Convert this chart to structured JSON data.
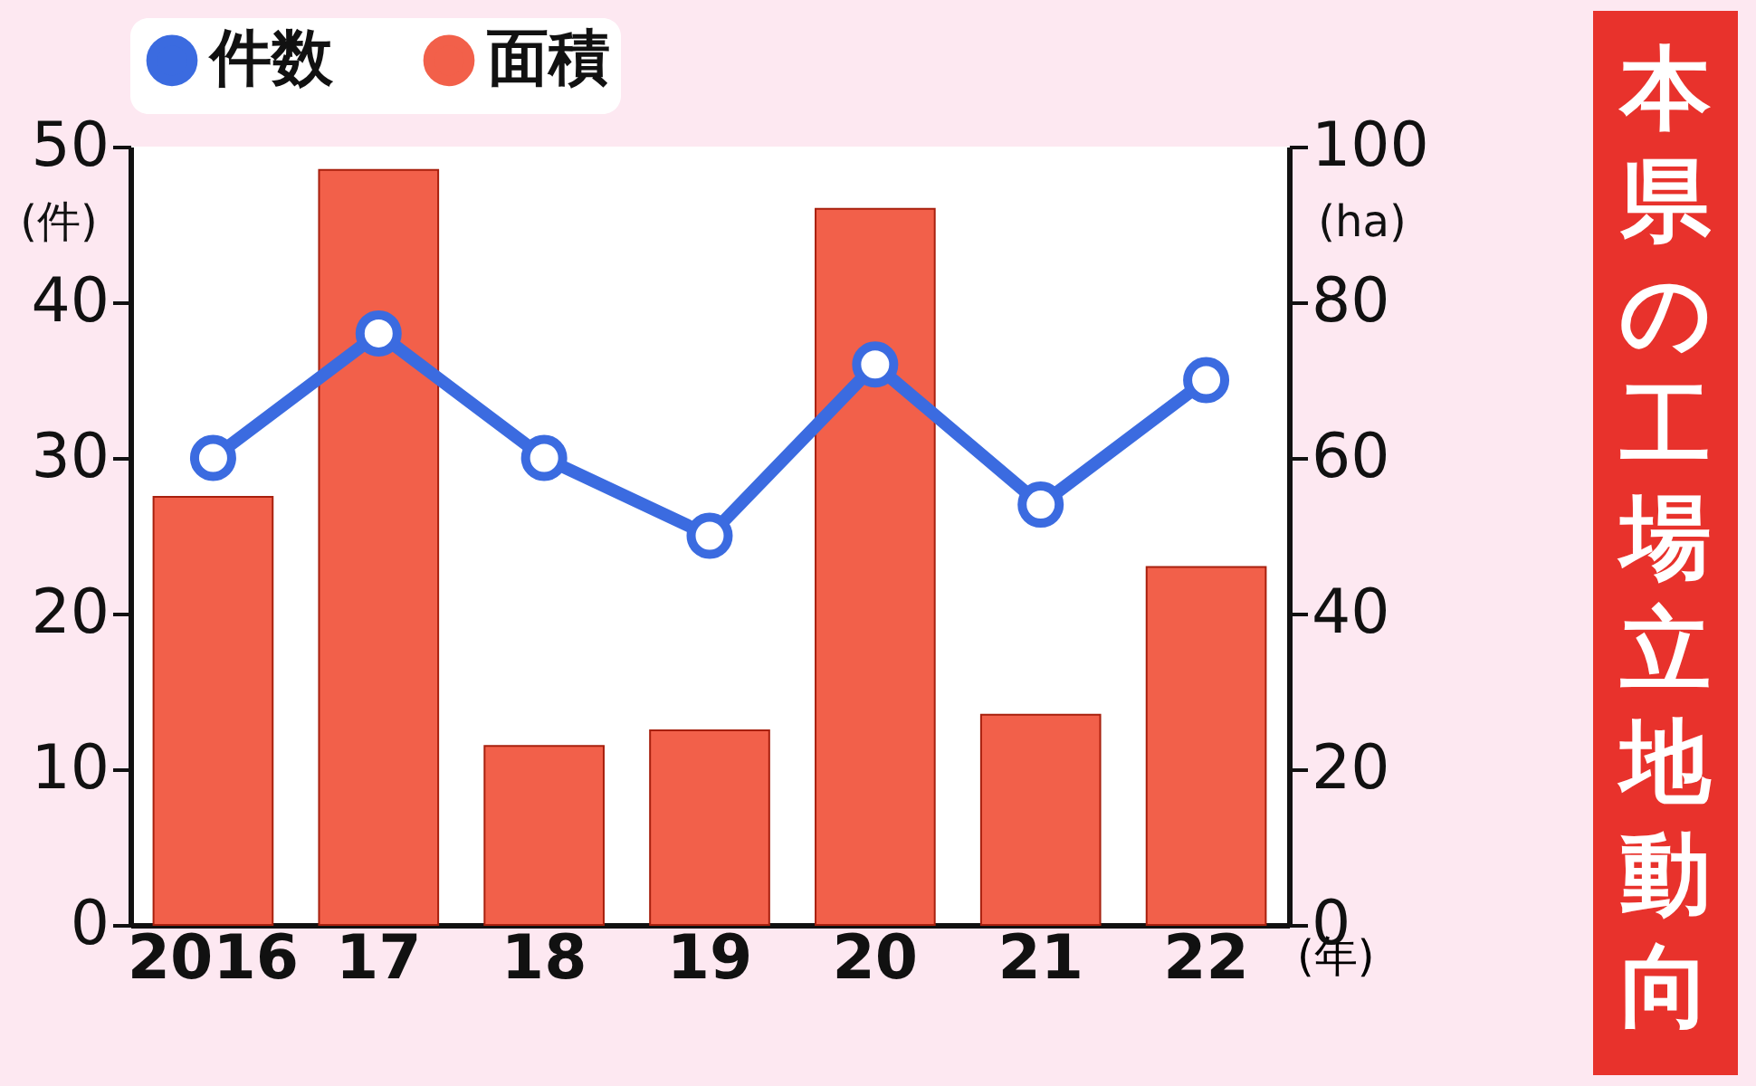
{
  "chart_data": {
    "type": "bar",
    "title": "本県の工場立地動向",
    "xlabel": "(年)",
    "ylabel": "(件)",
    "y2label": "(ha)",
    "categories": [
      "2016",
      "17",
      "18",
      "19",
      "20",
      "21",
      "22"
    ],
    "series": [
      {
        "name": "件数",
        "type": "line",
        "color": "#3b6be0",
        "values": [
          30,
          38,
          30,
          25,
          36,
          27,
          35
        ]
      },
      {
        "name": "面積",
        "axis": "y2",
        "color": "#f2604a",
        "values": [
          55,
          97,
          23,
          25,
          92,
          27,
          46
        ]
      }
    ],
    "ylim": [
      0,
      50
    ],
    "yticks": [
      0,
      10,
      20,
      30,
      40,
      50
    ],
    "y2lim": [
      0,
      100
    ],
    "y2ticks": [
      0,
      20,
      40,
      60,
      80,
      100
    ],
    "grid": false,
    "legend": "top",
    "marker": "circle",
    "line_style": "solid"
  }
}
